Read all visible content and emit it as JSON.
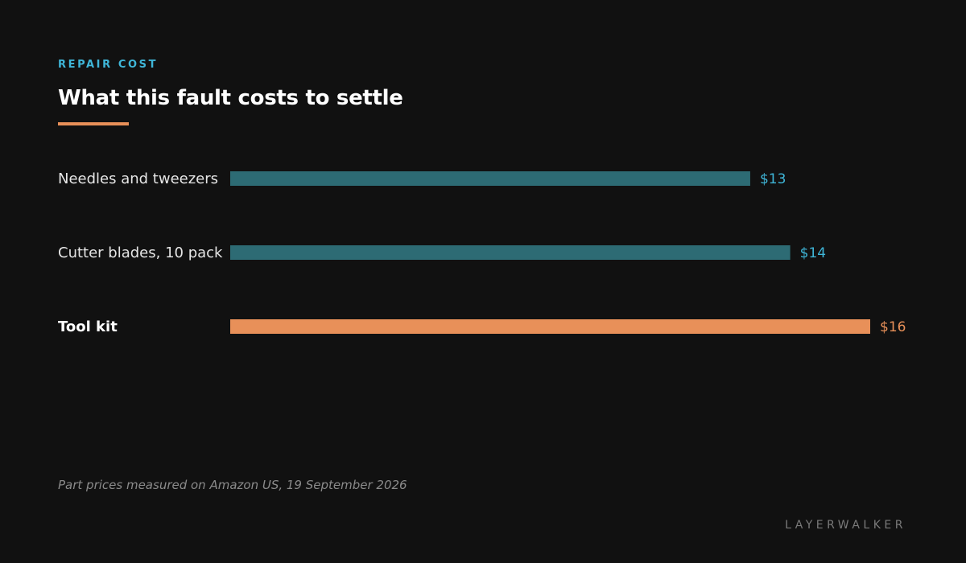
{
  "header": {
    "eyebrow": "REPAIR COST",
    "title": "What this fault costs to settle"
  },
  "colors": {
    "background": "#111111",
    "accent": "#e89059",
    "bar_default": "#2d6b74",
    "value_default": "#3fb6d8",
    "eyebrow": "#3fb6d8"
  },
  "chart_data": {
    "type": "bar",
    "orientation": "horizontal",
    "categories": [
      "Needles and tweezers",
      "Cutter blades, 10 pack",
      "Tool kit"
    ],
    "values": [
      13,
      14,
      16
    ],
    "value_labels": [
      "$13",
      "$14",
      "$16"
    ],
    "highlighted": "Tool kit",
    "xlim": [
      0,
      16
    ],
    "grid": false
  },
  "footer": {
    "source": "Part prices measured on Amazon US, 19 September 2026",
    "brand": "LAYERWALKER"
  }
}
